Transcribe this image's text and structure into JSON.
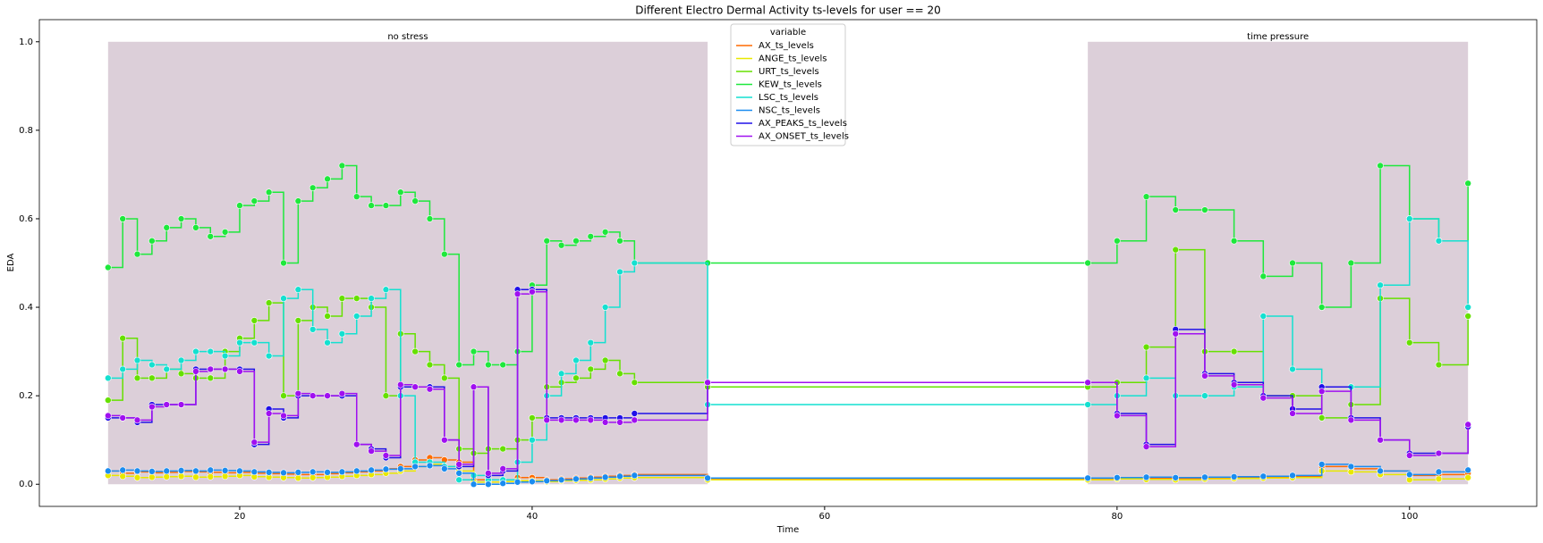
{
  "chart_data": {
    "type": "step-scatter",
    "title": "Different Electro Dermal Activity ts-levels for user == 20",
    "xlabel": "Time",
    "ylabel": "EDA",
    "xlim": [
      6.3,
      108.7
    ],
    "ylim": [
      -0.05,
      1.05
    ],
    "xticks": [
      20,
      40,
      60,
      80,
      100
    ],
    "yticks": [
      {
        "value": 0,
        "label": "0.0"
      },
      0.2,
      0.4,
      0.6,
      0.8,
      {
        "value": 1,
        "label": "1.0"
      }
    ],
    "spans": [
      {
        "label": "no stress",
        "xmin": 11,
        "xmax": 52,
        "ymin": 0,
        "ymax": 1,
        "color": "#dccfd9"
      },
      {
        "label": "time pressure",
        "xmin": 78,
        "xmax": 104,
        "ymin": 0,
        "ymax": 1,
        "color": "#dccfd9"
      }
    ],
    "legend_title": "variable",
    "legend_loc": "upper center",
    "x": [
      11,
      12,
      13,
      14,
      15,
      16,
      17,
      18,
      19,
      20,
      21,
      22,
      23,
      24,
      25,
      26,
      27,
      28,
      29,
      30,
      31,
      32,
      33,
      34,
      35,
      36,
      37,
      38,
      39,
      40,
      41,
      42,
      43,
      44,
      45,
      46,
      47,
      52,
      78,
      80,
      82,
      84,
      86,
      88,
      90,
      92,
      94,
      96,
      98,
      100,
      102,
      104
    ],
    "series": [
      {
        "name": "AX_ts_levels",
        "color": "#ff6a00",
        "values": [
          0.03,
          0.025,
          0.028,
          0.026,
          0.027,
          0.029,
          0.028,
          0.027,
          0.026,
          0.027,
          0.025,
          0.024,
          0.023,
          0.022,
          0.022,
          0.024,
          0.026,
          0.028,
          0.03,
          0.035,
          0.04,
          0.055,
          0.06,
          0.055,
          0.05,
          0.01,
          0.01,
          0.01,
          0.015,
          0.015,
          0.01,
          0.012,
          0.014,
          0.016,
          0.018,
          0.02,
          0.022,
          0.012,
          0.012,
          0.015,
          0.014,
          0.013,
          0.014,
          0.015,
          0.016,
          0.018,
          0.04,
          0.035,
          0.03,
          0.02,
          0.022,
          0.025
        ]
      },
      {
        "name": "ANGE_ts_levels",
        "color": "#e8e800",
        "values": [
          0.02,
          0.018,
          0.015,
          0.016,
          0.017,
          0.018,
          0.016,
          0.017,
          0.018,
          0.02,
          0.017,
          0.016,
          0.015,
          0.014,
          0.015,
          0.016,
          0.018,
          0.02,
          0.022,
          0.025,
          0.03,
          0.04,
          0.045,
          0.04,
          0.03,
          0.005,
          0.005,
          0.006,
          0.008,
          0.008,
          0.006,
          0.008,
          0.009,
          0.01,
          0.012,
          0.014,
          0.015,
          0.01,
          0.01,
          0.012,
          0.011,
          0.01,
          0.012,
          0.013,
          0.014,
          0.015,
          0.03,
          0.028,
          0.022,
          0.01,
          0.012,
          0.015
        ]
      },
      {
        "name": "URT_ts_levels",
        "color": "#66e000",
        "values": [
          0.19,
          0.33,
          0.24,
          0.24,
          0.26,
          0.25,
          0.24,
          0.24,
          0.3,
          0.33,
          0.37,
          0.41,
          0.2,
          0.37,
          0.4,
          0.38,
          0.42,
          0.42,
          0.4,
          0.2,
          0.34,
          0.3,
          0.27,
          0.24,
          0.08,
          0.07,
          0.08,
          0.08,
          0.1,
          0.15,
          0.22,
          0.23,
          0.24,
          0.26,
          0.28,
          0.25,
          0.23,
          0.22,
          0.22,
          0.23,
          0.31,
          0.53,
          0.3,
          0.3,
          0.2,
          0.2,
          0.15,
          0.18,
          0.42,
          0.32,
          0.27,
          0.38
        ]
      },
      {
        "name": "KEW_ts_levels",
        "color": "#1ee83c",
        "values": [
          0.49,
          0.6,
          0.52,
          0.55,
          0.58,
          0.6,
          0.58,
          0.56,
          0.57,
          0.63,
          0.64,
          0.66,
          0.5,
          0.64,
          0.67,
          0.69,
          0.72,
          0.65,
          0.63,
          0.63,
          0.66,
          0.64,
          0.6,
          0.52,
          0.27,
          0.3,
          0.27,
          0.27,
          0.3,
          0.45,
          0.55,
          0.54,
          0.55,
          0.56,
          0.57,
          0.55,
          0.5,
          0.5,
          0.5,
          0.55,
          0.65,
          0.62,
          0.62,
          0.55,
          0.47,
          0.5,
          0.4,
          0.5,
          0.72,
          0.6,
          0.55,
          0.68
        ]
      },
      {
        "name": "LSC_ts_levels",
        "color": "#14e0d0",
        "values": [
          0.24,
          0.26,
          0.28,
          0.27,
          0.26,
          0.28,
          0.3,
          0.3,
          0.29,
          0.32,
          0.32,
          0.29,
          0.42,
          0.44,
          0.35,
          0.32,
          0.34,
          0.38,
          0.42,
          0.44,
          0.2,
          0.05,
          0.05,
          0.04,
          0.01,
          0.02,
          0.01,
          0.01,
          0.05,
          0.1,
          0.2,
          0.25,
          0.28,
          0.32,
          0.4,
          0.48,
          0.5,
          0.18,
          0.18,
          0.2,
          0.24,
          0.2,
          0.2,
          0.22,
          0.38,
          0.26,
          0.22,
          0.22,
          0.45,
          0.6,
          0.55,
          0.4
        ]
      },
      {
        "name": "NSC_ts_levels",
        "color": "#1a8cf0",
        "values": [
          0.03,
          0.032,
          0.03,
          0.029,
          0.03,
          0.031,
          0.03,
          0.032,
          0.031,
          0.03,
          0.028,
          0.027,
          0.026,
          0.027,
          0.028,
          0.027,
          0.028,
          0.03,
          0.032,
          0.034,
          0.035,
          0.04,
          0.042,
          0.035,
          0.025,
          0.0,
          0.0,
          0.002,
          0.005,
          0.006,
          0.008,
          0.01,
          0.012,
          0.014,
          0.016,
          0.018,
          0.02,
          0.014,
          0.014,
          0.015,
          0.016,
          0.015,
          0.016,
          0.017,
          0.018,
          0.02,
          0.045,
          0.04,
          0.03,
          0.022,
          0.028,
          0.032
        ]
      },
      {
        "name": "AX_PEAKS_ts_levels",
        "color": "#2010e8",
        "values": [
          0.15,
          0.15,
          0.14,
          0.18,
          0.18,
          0.18,
          0.26,
          0.26,
          0.26,
          0.26,
          0.09,
          0.17,
          0.15,
          0.2,
          0.2,
          0.2,
          0.2,
          0.09,
          0.08,
          0.06,
          0.22,
          0.22,
          0.22,
          0.1,
          0.04,
          0.22,
          0.02,
          0.03,
          0.44,
          0.44,
          0.15,
          0.15,
          0.15,
          0.15,
          0.15,
          0.15,
          0.16,
          0.23,
          0.23,
          0.16,
          0.09,
          0.35,
          0.25,
          0.23,
          0.2,
          0.17,
          0.22,
          0.15,
          0.1,
          0.07,
          0.07,
          0.13
        ]
      },
      {
        "name": "AX_ONSET_ts_levels",
        "color": "#a010f0",
        "values": [
          0.155,
          0.15,
          0.145,
          0.175,
          0.18,
          0.18,
          0.255,
          0.26,
          0.26,
          0.255,
          0.095,
          0.16,
          0.155,
          0.205,
          0.2,
          0.2,
          0.205,
          0.09,
          0.075,
          0.065,
          0.225,
          0.22,
          0.215,
          0.1,
          0.045,
          0.22,
          0.025,
          0.035,
          0.43,
          0.435,
          0.145,
          0.145,
          0.145,
          0.145,
          0.14,
          0.14,
          0.145,
          0.23,
          0.23,
          0.155,
          0.085,
          0.34,
          0.245,
          0.225,
          0.195,
          0.16,
          0.21,
          0.145,
          0.1,
          0.065,
          0.07,
          0.135
        ]
      }
    ]
  }
}
